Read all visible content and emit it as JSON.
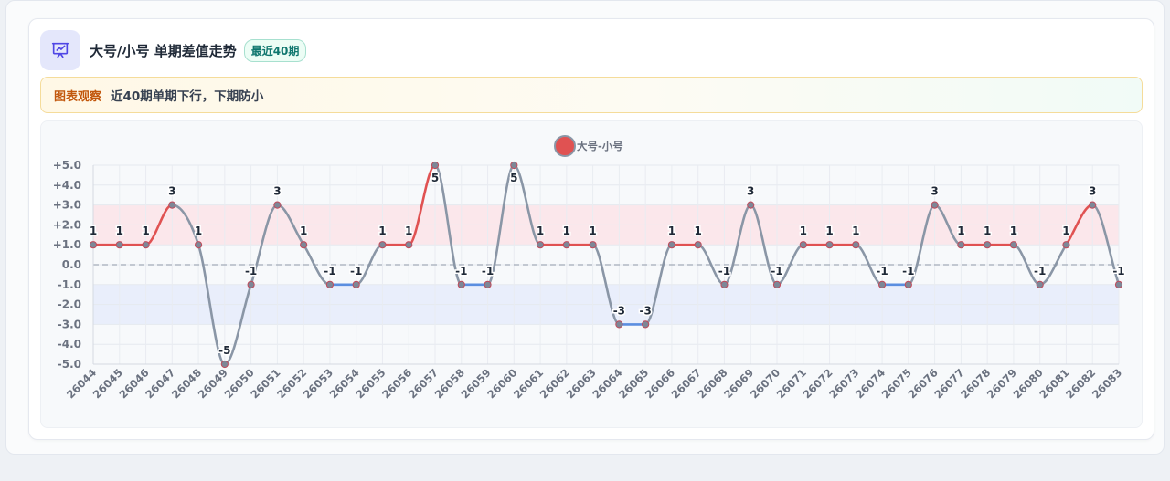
{
  "header": {
    "title": "大号/小号 单期差值走势",
    "badge": "最近40期",
    "icon": "presentation-chart-icon"
  },
  "observation": {
    "label": "图表观察",
    "text": "近40期单期下行，下期防小"
  },
  "colors": {
    "up": "#e05252",
    "down": "#5b8ee0",
    "flat": "#8a96a6",
    "positive_band": "#fbe4e7",
    "negative_band": "#e6ecfa",
    "accent": "#4f46e5"
  },
  "chart_data": {
    "type": "line",
    "title": "",
    "xlabel": "",
    "ylabel": "",
    "legend": {
      "label": "大号-小号",
      "position": "top-center"
    },
    "ylim": [
      -5,
      5
    ],
    "yticks": [
      "+5.0",
      "+4.0",
      "+3.0",
      "+2.0",
      "+1.0",
      "0.0",
      "-1.0",
      "-2.0",
      "-3.0",
      "-4.0",
      "-5.0"
    ],
    "grid": true,
    "bands": [
      {
        "from": 1,
        "to": 3,
        "color": "positive"
      },
      {
        "from": -3,
        "to": -1,
        "color": "negative"
      }
    ],
    "zero_line": "dashed",
    "categories": [
      "26044",
      "26045",
      "26046",
      "26047",
      "26048",
      "26049",
      "26050",
      "26051",
      "26052",
      "26053",
      "26054",
      "26055",
      "26056",
      "26057",
      "26058",
      "26059",
      "26060",
      "26061",
      "26062",
      "26063",
      "26064",
      "26065",
      "26066",
      "26067",
      "26068",
      "26069",
      "26070",
      "26071",
      "26072",
      "26073",
      "26074",
      "26075",
      "26076",
      "26077",
      "26078",
      "26079",
      "26080",
      "26081",
      "26082",
      "26083"
    ],
    "series": [
      {
        "name": "大号-小号",
        "values": [
          1,
          1,
          1,
          3,
          1,
          -5,
          -1,
          3,
          1,
          -1,
          -1,
          1,
          1,
          5,
          -1,
          -1,
          5,
          1,
          1,
          1,
          -3,
          -3,
          1,
          1,
          -1,
          3,
          -1,
          1,
          1,
          1,
          -1,
          -1,
          3,
          1,
          1,
          1,
          -1,
          1,
          3,
          -1
        ]
      }
    ]
  }
}
